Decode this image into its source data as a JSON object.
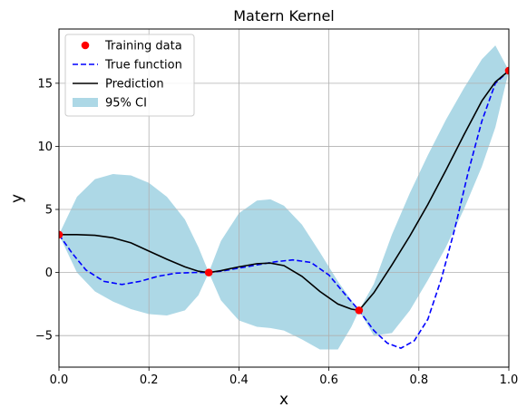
{
  "chart_data": {
    "type": "line",
    "title": "Matern Kernel",
    "xlabel": "x",
    "ylabel": "y",
    "xlim": [
      0,
      1
    ],
    "ylim": [
      -7.5,
      19.3
    ],
    "xticks": [
      0.0,
      0.2,
      0.4,
      0.6,
      0.8,
      1.0
    ],
    "xtick_labels": [
      "0.0",
      "0.2",
      "0.4",
      "0.6",
      "0.8",
      "1.0"
    ],
    "yticks": [
      -5,
      0,
      5,
      10,
      15
    ],
    "ytick_labels": [
      "−5",
      "0",
      "5",
      "10",
      "15"
    ],
    "grid": true,
    "legend_position": "top-left",
    "legend": [
      {
        "label": "Training data",
        "kind": "marker",
        "color": "#ff0000"
      },
      {
        "label": "True function",
        "kind": "dashed",
        "color": "#0000ff"
      },
      {
        "label": "Prediction",
        "kind": "line",
        "color": "#000000"
      },
      {
        "label": "95% CI",
        "kind": "patch",
        "color": "#add8e6"
      }
    ],
    "training_data": {
      "x": [
        0.0,
        0.333,
        0.667,
        1.0
      ],
      "y": [
        3.0,
        0.0,
        -3.0,
        16.0
      ],
      "color": "#ff0000"
    },
    "true_function": {
      "x": [
        0.0,
        0.03,
        0.06,
        0.1,
        0.14,
        0.18,
        0.22,
        0.26,
        0.3,
        0.333,
        0.36,
        0.4,
        0.44,
        0.48,
        0.52,
        0.56,
        0.6,
        0.64,
        0.667,
        0.7,
        0.73,
        0.76,
        0.79,
        0.82,
        0.85,
        0.88,
        0.91,
        0.94,
        0.97,
        1.0
      ],
      "y": [
        3.0,
        1.5,
        0.2,
        -0.7,
        -0.95,
        -0.7,
        -0.3,
        -0.05,
        0.0,
        0.0,
        0.1,
        0.35,
        0.6,
        0.85,
        1.0,
        0.8,
        -0.2,
        -1.9,
        -3.0,
        -4.6,
        -5.6,
        -6.0,
        -5.4,
        -3.7,
        -0.5,
        3.5,
        8.0,
        12.0,
        15.0,
        16.0
      ],
      "color": "#0000ff"
    },
    "prediction": {
      "x": [
        0.0,
        0.04,
        0.08,
        0.12,
        0.16,
        0.2,
        0.24,
        0.28,
        0.31,
        0.333,
        0.36,
        0.4,
        0.44,
        0.47,
        0.5,
        0.54,
        0.58,
        0.62,
        0.65,
        0.667,
        0.7,
        0.74,
        0.78,
        0.82,
        0.86,
        0.9,
        0.94,
        0.97,
        1.0
      ],
      "y": [
        3.0,
        3.0,
        2.95,
        2.75,
        2.35,
        1.7,
        1.05,
        0.45,
        0.1,
        0.0,
        0.15,
        0.45,
        0.7,
        0.75,
        0.55,
        -0.3,
        -1.5,
        -2.5,
        -2.9,
        -3.0,
        -1.6,
        0.6,
        2.9,
        5.4,
        8.1,
        10.9,
        13.6,
        15.1,
        16.0
      ],
      "color": "#000000"
    },
    "ci_95": {
      "x": [
        0.0,
        0.04,
        0.08,
        0.12,
        0.16,
        0.2,
        0.24,
        0.28,
        0.31,
        0.333,
        0.36,
        0.4,
        0.44,
        0.47,
        0.5,
        0.54,
        0.58,
        0.62,
        0.65,
        0.667,
        0.7,
        0.74,
        0.78,
        0.82,
        0.86,
        0.9,
        0.94,
        0.97,
        1.0
      ],
      "upper": [
        3.0,
        6.0,
        7.4,
        7.8,
        7.7,
        7.1,
        6.0,
        4.2,
        2.0,
        0.0,
        2.5,
        4.7,
        5.7,
        5.8,
        5.3,
        3.8,
        1.6,
        -0.7,
        -2.2,
        -3.0,
        -0.9,
        3.0,
        6.3,
        9.3,
        12.1,
        14.6,
        16.9,
        18.0,
        16.0
      ],
      "lower": [
        3.0,
        0.0,
        -1.5,
        -2.3,
        -2.9,
        -3.3,
        -3.4,
        -3.0,
        -1.8,
        0.0,
        -2.2,
        -3.8,
        -4.3,
        -4.4,
        -4.6,
        -5.3,
        -6.1,
        -6.1,
        -4.3,
        -3.0,
        -5.0,
        -4.8,
        -3.0,
        -0.6,
        2.0,
        5.0,
        8.4,
        11.5,
        16.0
      ],
      "color": "#add8e6"
    }
  }
}
